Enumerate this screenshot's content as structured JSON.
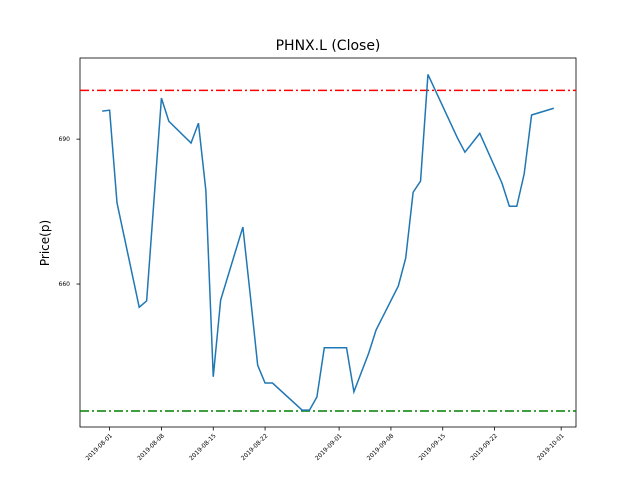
{
  "chart_data": {
    "type": "line",
    "title": "PHNX.L (Close)",
    "y_label": "Price(p)",
    "x": [
      "2019-07-31",
      "2019-08-01",
      "2019-08-02",
      "2019-08-05",
      "2019-08-06",
      "2019-08-08",
      "2019-08-09",
      "2019-08-12",
      "2019-08-13",
      "2019-08-14",
      "2019-08-15",
      "2019-08-16",
      "2019-08-19",
      "2019-08-20",
      "2019-08-21",
      "2019-08-22",
      "2019-08-23",
      "2019-08-27",
      "2019-08-28",
      "2019-08-29",
      "2019-08-30",
      "2019-09-02",
      "2019-09-03",
      "2019-09-05",
      "2019-09-06",
      "2019-09-09",
      "2019-09-10",
      "2019-09-11",
      "2019-09-12",
      "2019-09-13",
      "2019-09-17",
      "2019-09-18",
      "2019-09-20",
      "2019-09-23",
      "2019-09-24",
      "2019-09-25",
      "2019-09-26",
      "2019-09-27",
      "2019-09-30"
    ],
    "series": [
      {
        "name": "Close",
        "color": "#1f77b4",
        "values": [
          695.8,
          696.0,
          676.8,
          655.2,
          656.5,
          698.5,
          693.7,
          689.2,
          693.3,
          679.4,
          640.8,
          656.7,
          671.8,
          657.7,
          643.2,
          639.5,
          639.5,
          633.9,
          633.9,
          636.6,
          646.8,
          646.8,
          637.7,
          645.7,
          650.5,
          659.6,
          665.4,
          679.0,
          681.3,
          703.4,
          690.2,
          687.3,
          691.2,
          680.9,
          676.1,
          676.1,
          682.8,
          695.0,
          696.4
        ]
      }
    ],
    "hlines": [
      {
        "value": 700.1,
        "color": "#ff0000"
      },
      {
        "value": 633.7,
        "color": "#008000"
      }
    ],
    "xlim": [
      "2019-07-28",
      "2019-10-03"
    ],
    "xticks": [
      "2019-08-01",
      "2019-08-08",
      "2019-08-15",
      "2019-08-22",
      "2019-09-01",
      "2019-09-08",
      "2019-09-15",
      "2019-09-22",
      "2019-10-01"
    ],
    "ylim": [
      630.4,
      706.8
    ],
    "yticks": [
      660,
      690
    ]
  }
}
